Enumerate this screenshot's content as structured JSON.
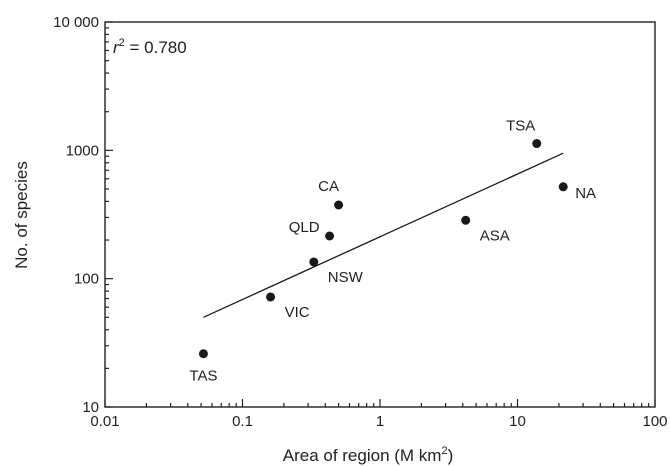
{
  "chart_data": {
    "type": "scatter",
    "title": "",
    "xlabel": "Area of region (M km",
    "xlabel_sup": "2",
    "xlabel_close": ")",
    "ylabel": "No. of species",
    "xscale": "log",
    "yscale": "log",
    "xlim": [
      0.01,
      100
    ],
    "ylim": [
      10,
      10000
    ],
    "xticks": [
      0.01,
      0.1,
      1,
      10,
      100
    ],
    "xtick_labels": [
      "0.01",
      "0.1",
      "1",
      "10",
      "100"
    ],
    "yticks": [
      10,
      100,
      1000,
      10000
    ],
    "ytick_labels": [
      "10",
      "100",
      "1000",
      "10 000"
    ],
    "grid": false,
    "annotation": {
      "prefix": "r",
      "sup": "2",
      "suffix": " = 0.780"
    },
    "points": [
      {
        "label": "TAS",
        "x": 0.052,
        "y": 26,
        "label_pos": "below"
      },
      {
        "label": "VIC",
        "x": 0.16,
        "y": 72,
        "label_pos": "below-right"
      },
      {
        "label": "NSW",
        "x": 0.33,
        "y": 135,
        "label_pos": "below-right"
      },
      {
        "label": "QLD",
        "x": 0.43,
        "y": 215,
        "label_pos": "left"
      },
      {
        "label": "CA",
        "x": 0.5,
        "y": 375,
        "label_pos": "above"
      },
      {
        "label": "ASA",
        "x": 4.2,
        "y": 285,
        "label_pos": "below-right"
      },
      {
        "label": "TSA",
        "x": 13.8,
        "y": 1130,
        "label_pos": "above-left"
      },
      {
        "label": "NA",
        "x": 21.5,
        "y": 520,
        "label_pos": "right"
      }
    ],
    "fit_line": {
      "x": [
        0.052,
        21.5
      ],
      "y": [
        50,
        950
      ]
    }
  }
}
